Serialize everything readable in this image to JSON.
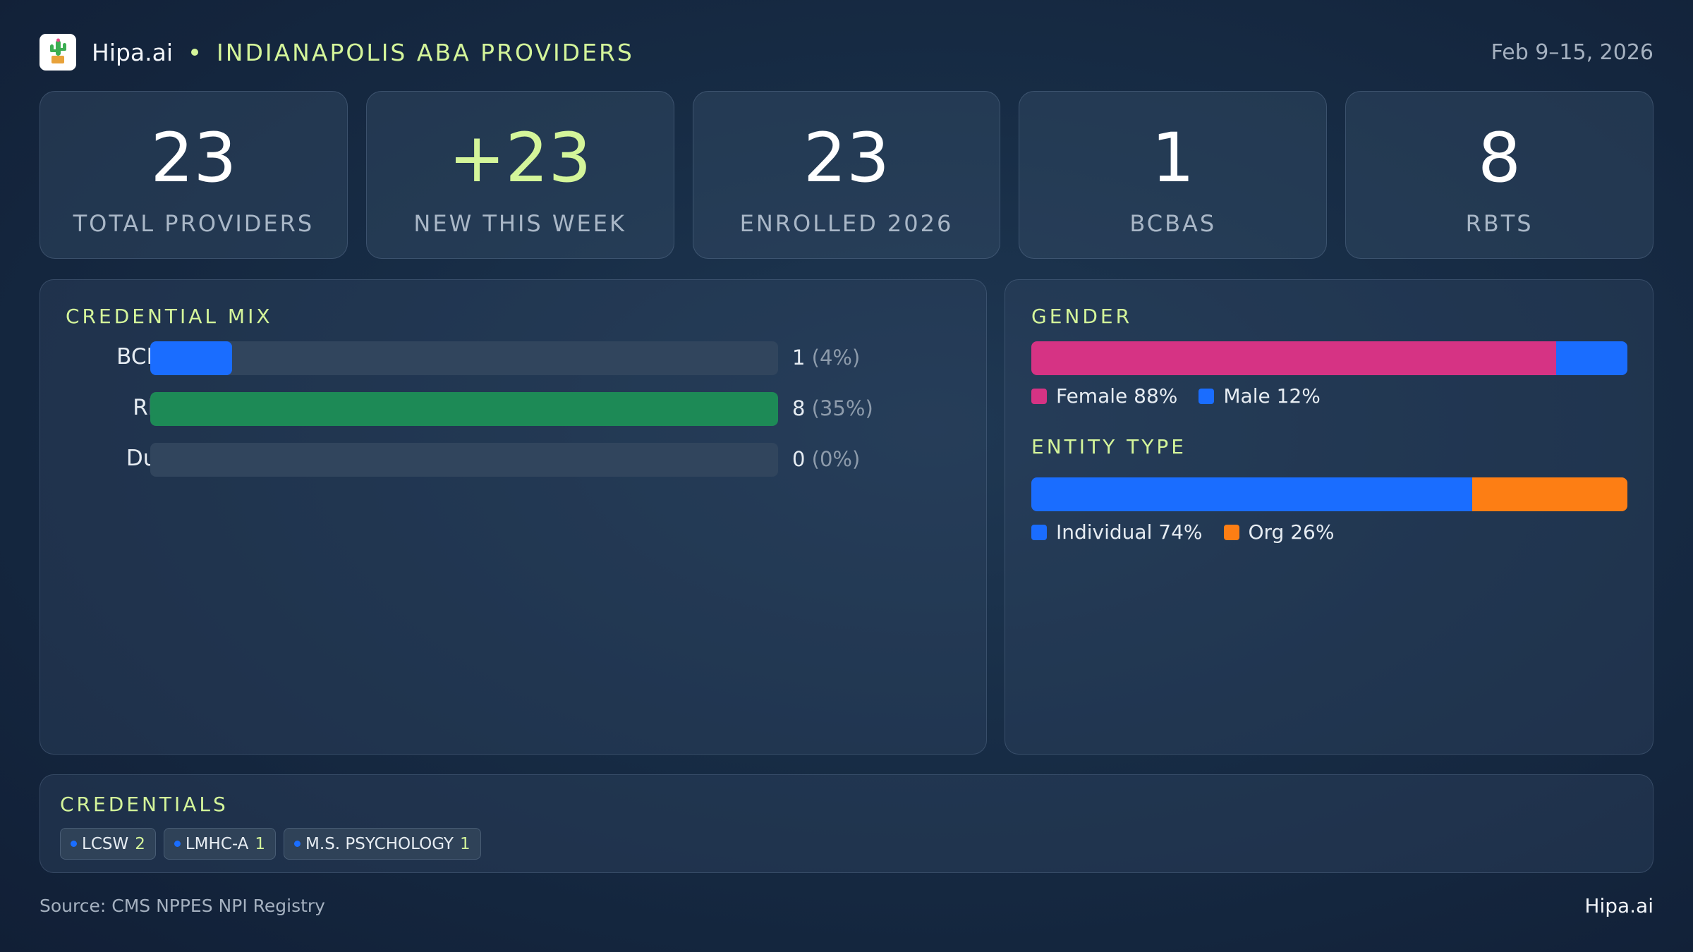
{
  "header": {
    "brand": "Hipa.ai",
    "region": "INDIANAPOLIS ABA PROVIDERS",
    "date_range": "Feb 9–15, 2026",
    "logo_icon": "cactus-icon"
  },
  "stats": [
    {
      "value": "23",
      "label": "TOTAL PROVIDERS"
    },
    {
      "value": "+23",
      "label": "NEW THIS WEEK"
    },
    {
      "value": "23",
      "label": "ENROLLED 2026"
    },
    {
      "value": "1",
      "label": "BCBAS"
    },
    {
      "value": "8",
      "label": "RBTS"
    }
  ],
  "credential_mix": {
    "title": "CREDENTIAL MIX",
    "rows": [
      {
        "label": "BCBA",
        "count": "1",
        "pct": "(4%)",
        "fraction": 0.13,
        "color": "#1a6dff"
      },
      {
        "label": "RBT",
        "count": "8",
        "pct": "(35%)",
        "fraction": 1.0,
        "color": "#1d8a56"
      },
      {
        "label": "Dual",
        "count": "0",
        "pct": "(0%)",
        "fraction": 0,
        "color": "#1a6dff"
      }
    ]
  },
  "gender": {
    "title": "GENDER",
    "segments": [
      {
        "label": "Female 88%",
        "fraction": 0.88,
        "color": "#d63384"
      },
      {
        "label": "Male 12%",
        "fraction": 0.12,
        "color": "#1a6dff"
      }
    ]
  },
  "entity_type": {
    "title": "ENTITY TYPE",
    "segments": [
      {
        "label": "Individual 74%",
        "fraction": 0.74,
        "color": "#1a6dff"
      },
      {
        "label": "Org 26%",
        "fraction": 0.26,
        "color": "#fd7e14"
      }
    ]
  },
  "credentials": {
    "title": "CREDENTIALS",
    "chips": [
      {
        "name": "LCSW",
        "count": "2"
      },
      {
        "name": "LMHC-A",
        "count": "1"
      },
      {
        "name": "M.S. PSYCHOLOGY",
        "count": "1"
      }
    ]
  },
  "footer": {
    "source": "Source: CMS NPPES NPI Registry",
    "brand": "Hipa.ai"
  }
}
